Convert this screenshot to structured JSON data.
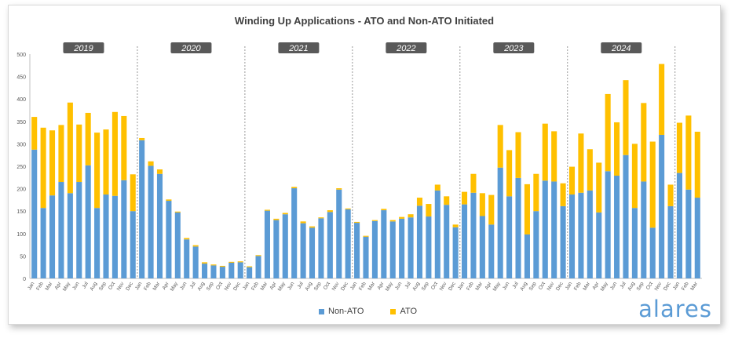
{
  "chart_data": {
    "type": "bar",
    "stacked": true,
    "title": "Winding Up Applications - ATO and Non-ATO Initiated",
    "ylim": [
      0,
      500
    ],
    "y_ticks": [
      0,
      50,
      100,
      150,
      200,
      250,
      300,
      350,
      400,
      450,
      500
    ],
    "grid": false,
    "legend_position": "bottom",
    "year_labels": [
      "2019",
      "2020",
      "2021",
      "2022",
      "2023",
      "2024"
    ],
    "categories": [
      "Jan",
      "Feb",
      "Mar",
      "Apr",
      "May",
      "Jun",
      "Jul",
      "Aug",
      "Sep",
      "Oct",
      "Nov",
      "Dec",
      "Jan",
      "Feb",
      "Mar",
      "Apr",
      "May",
      "Jun",
      "Jul",
      "Aug",
      "Sep",
      "Oct",
      "Nov",
      "Dec",
      "Jan",
      "Feb",
      "Mar",
      "Apr",
      "May",
      "Jun",
      "Jul",
      "Aug",
      "Sep",
      "Oct",
      "Nov",
      "Dec",
      "Jan",
      "Feb",
      "Mar",
      "Apr",
      "May",
      "Jun",
      "Jul",
      "Aug",
      "Sep",
      "Oct",
      "Nov",
      "Dec",
      "Jan",
      "Feb",
      "Mar",
      "Apr",
      "May",
      "Jun",
      "Jul",
      "Aug",
      "Sep",
      "Oct",
      "Nov",
      "Dec",
      "Jan",
      "Feb",
      "Mar",
      "Apr",
      "May",
      "Jun",
      "Jul",
      "Aug",
      "Sep",
      "Oct",
      "Nov",
      "Dec",
      "Jan",
      "Feb",
      "Mar"
    ],
    "series": [
      {
        "name": "Non-ATO",
        "color": "#5b9bd5",
        "values": [
          287,
          157,
          185,
          215,
          190,
          215,
          252,
          157,
          187,
          184,
          219,
          150,
          308,
          251,
          233,
          173,
          147,
          87,
          71,
          33,
          29,
          26,
          35,
          36,
          25,
          50,
          151,
          130,
          143,
          201,
          123,
          113,
          134,
          148,
          198,
          154,
          124,
          93,
          128,
          152,
          127,
          133,
          136,
          162,
          138,
          196,
          164,
          114,
          165,
          191,
          139,
          120,
          247,
          183,
          224,
          98,
          150,
          218,
          216,
          161,
          187,
          191,
          196,
          147,
          239,
          229,
          275,
          157,
          216,
          113,
          320,
          161,
          235,
          198,
          180
        ]
      },
      {
        "name": "ATO",
        "color": "#ffc000",
        "values": [
          73,
          179,
          145,
          127,
          202,
          128,
          117,
          168,
          145,
          187,
          143,
          82,
          5,
          10,
          10,
          3,
          2,
          3,
          3,
          3,
          2,
          2,
          2,
          2,
          2,
          2,
          2,
          3,
          3,
          3,
          4,
          3,
          2,
          4,
          3,
          2,
          2,
          2,
          2,
          3,
          3,
          4,
          7,
          18,
          28,
          13,
          19,
          6,
          28,
          42,
          51,
          66,
          95,
          103,
          102,
          112,
          83,
          127,
          112,
          51,
          62,
          132,
          92,
          111,
          172,
          119,
          167,
          143,
          175,
          192,
          158,
          48,
          112,
          165,
          147
        ]
      }
    ]
  },
  "brand": "alares"
}
